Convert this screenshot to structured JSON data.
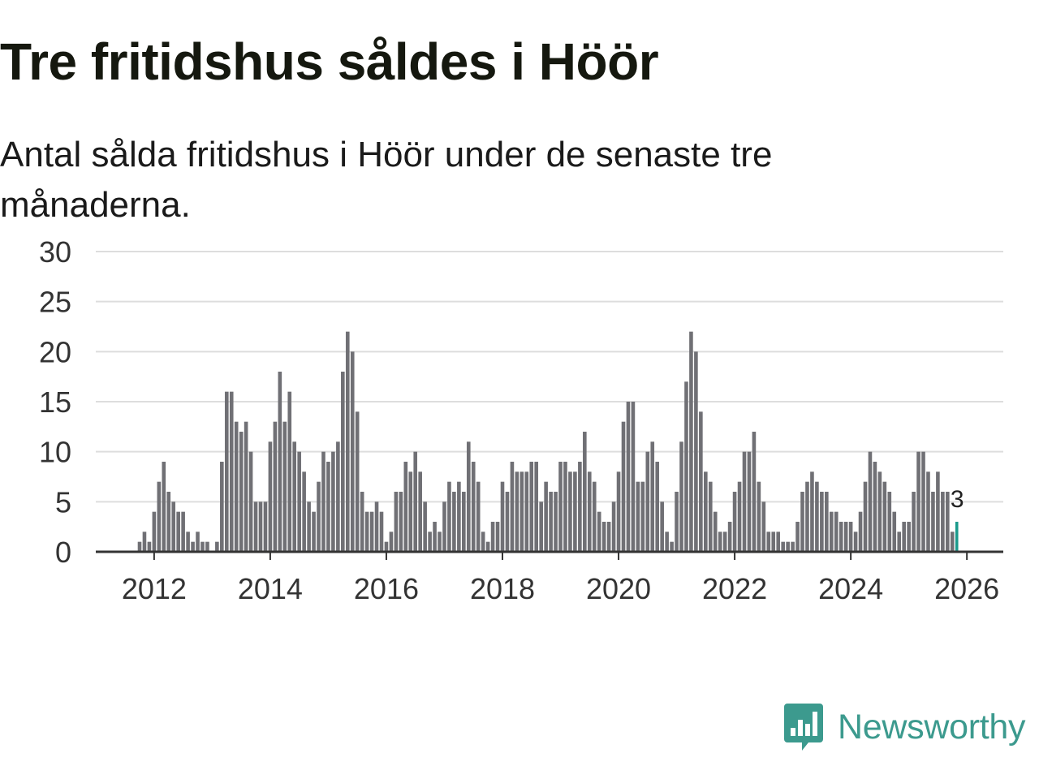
{
  "title": "Tre fritidshus såldes i Höör",
  "subtitle": "Antal sålda fritidshus i Höör under de senaste tre månaderna.",
  "brand": {
    "name": "Newsworthy",
    "color": "#3c9a8e",
    "icon": "newsworthy-bar-chart-logo-icon"
  },
  "colors": {
    "bar": "#707075",
    "highlight": "#1b9a8c",
    "grid": "#dddddd",
    "axis": "#333333"
  },
  "chart_data": {
    "type": "bar",
    "title": "Tre fritidshus såldes i Höör",
    "xlabel": "",
    "ylabel": "",
    "ylim": [
      0,
      30
    ],
    "yticks": [
      0,
      5,
      10,
      15,
      20,
      25,
      30
    ],
    "xticks": [
      "2012",
      "2014",
      "2016",
      "2018",
      "2020",
      "2022",
      "2024",
      "2026"
    ],
    "start": "2011-10",
    "period": "month",
    "values": [
      1,
      2,
      1,
      4,
      7,
      9,
      6,
      5,
      4,
      4,
      2,
      1,
      2,
      1,
      1,
      0,
      1,
      9,
      16,
      16,
      13,
      12,
      13,
      10,
      5,
      5,
      5,
      11,
      13,
      18,
      13,
      16,
      11,
      10,
      8,
      5,
      4,
      7,
      10,
      9,
      10,
      11,
      18,
      22,
      20,
      14,
      6,
      4,
      4,
      5,
      4,
      1,
      2,
      6,
      6,
      9,
      8,
      10,
      8,
      5,
      2,
      3,
      2,
      5,
      7,
      6,
      7,
      6,
      11,
      9,
      7,
      2,
      1,
      3,
      3,
      7,
      6,
      9,
      8,
      8,
      8,
      9,
      9,
      5,
      7,
      6,
      6,
      9,
      9,
      8,
      8,
      9,
      12,
      8,
      7,
      4,
      3,
      3,
      5,
      8,
      13,
      15,
      15,
      7,
      7,
      10,
      11,
      9,
      5,
      2,
      1,
      6,
      11,
      17,
      22,
      20,
      14,
      8,
      7,
      4,
      2,
      2,
      3,
      6,
      7,
      10,
      10,
      12,
      7,
      5,
      2,
      2,
      2,
      1,
      1,
      1,
      3,
      6,
      7,
      8,
      7,
      6,
      6,
      4,
      4,
      3,
      3,
      3,
      2,
      4,
      7,
      10,
      9,
      8,
      7,
      6,
      4,
      2,
      3,
      3,
      6,
      10,
      10,
      8,
      6,
      8,
      6,
      6,
      2,
      3
    ],
    "highlight": {
      "label": "3"
    }
  }
}
